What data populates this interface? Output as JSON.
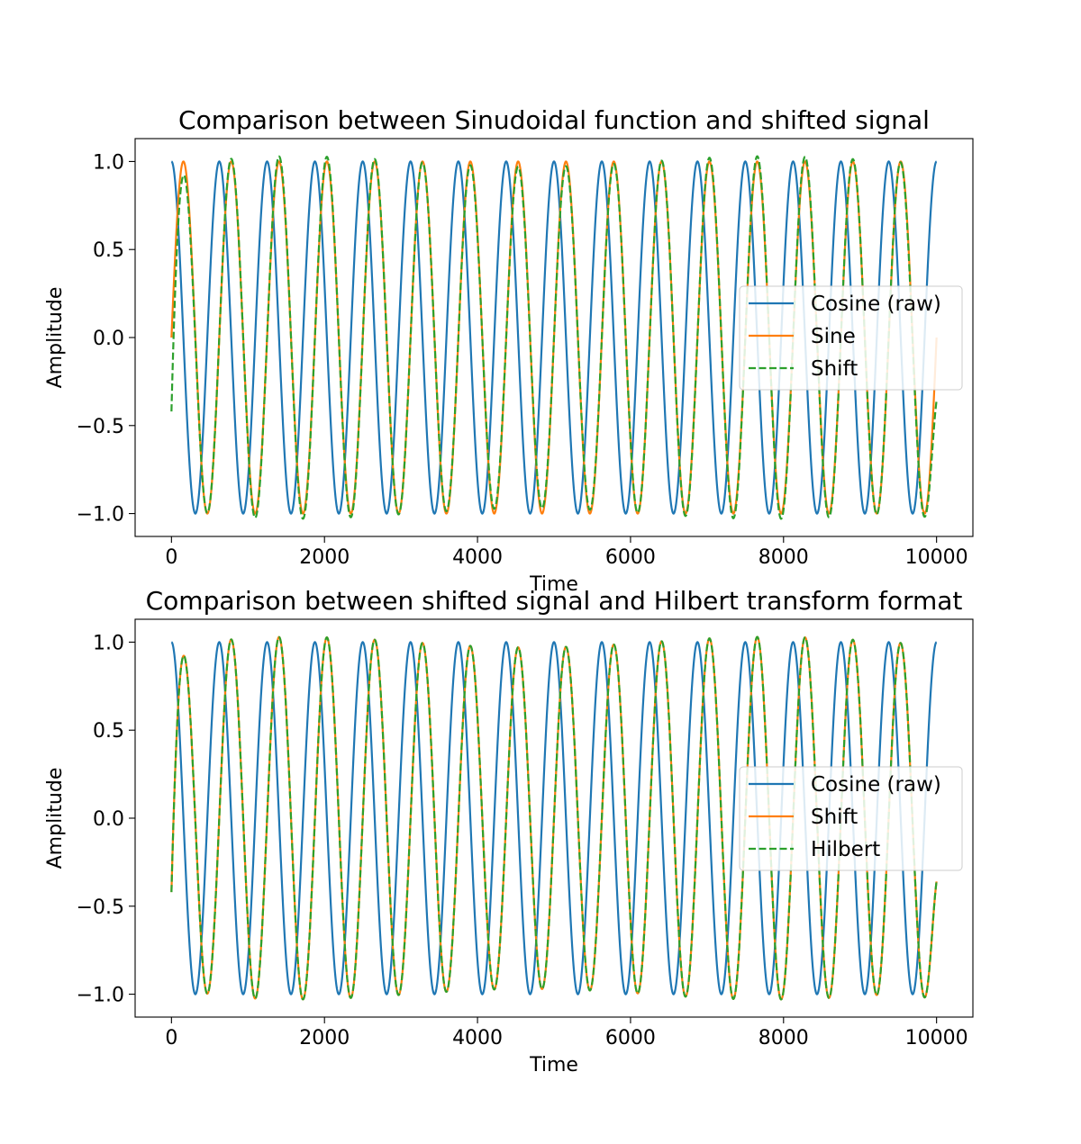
{
  "chart_data": [
    {
      "type": "line",
      "title": "Comparison between Sinudoidal function and shifted signal",
      "xlabel": "Time",
      "ylabel": "Amplitude",
      "xlim": [
        -475,
        10475
      ],
      "ylim": [
        -1.13,
        1.13
      ],
      "xticks": [
        0,
        2000,
        4000,
        6000,
        8000,
        10000
      ],
      "xtick_labels": [
        "0",
        "2000",
        "4000",
        "6000",
        "8000",
        "10000"
      ],
      "yticks": [
        -1.0,
        -0.5,
        0.0,
        0.5,
        1.0
      ],
      "ytick_labels": [
        "−1.0",
        "−0.5",
        "0.0",
        "0.5",
        "1.0"
      ],
      "grid": false,
      "legend_position": "center-right",
      "series": [
        {
          "name": "Cosine (raw)",
          "color": "#1f77b4",
          "style": "solid",
          "function": "cos",
          "period": 625,
          "x_range": [
            0,
            10000
          ]
        },
        {
          "name": "Sine",
          "color": "#ff7f0e",
          "style": "solid",
          "function": "sin",
          "period": 625,
          "x_range": [
            0,
            10000
          ]
        },
        {
          "name": "Shift",
          "color": "#2ca02c",
          "style": "dashed",
          "function": "sin-hilbert-approx",
          "period": 625,
          "x_range": [
            0,
            10000
          ],
          "start_value": -0.48,
          "end_value": -0.43
        }
      ]
    },
    {
      "type": "line",
      "title": "Comparison between shifted signal and Hilbert transform format",
      "xlabel": "Time",
      "ylabel": "Amplitude",
      "xlim": [
        -475,
        10475
      ],
      "ylim": [
        -1.13,
        1.13
      ],
      "xticks": [
        0,
        2000,
        4000,
        6000,
        8000,
        10000
      ],
      "xtick_labels": [
        "0",
        "2000",
        "4000",
        "6000",
        "8000",
        "10000"
      ],
      "yticks": [
        -1.0,
        -0.5,
        0.0,
        0.5,
        1.0
      ],
      "ytick_labels": [
        "−1.0",
        "−0.5",
        "0.0",
        "0.5",
        "1.0"
      ],
      "grid": false,
      "legend_position": "center-right",
      "series": [
        {
          "name": "Cosine (raw)",
          "color": "#1f77b4",
          "style": "solid",
          "function": "cos",
          "period": 625,
          "x_range": [
            0,
            10000
          ]
        },
        {
          "name": "Shift",
          "color": "#ff7f0e",
          "style": "solid",
          "function": "sin-hilbert-approx",
          "period": 625,
          "x_range": [
            0,
            10000
          ],
          "start_value": -0.48,
          "end_value": -0.43
        },
        {
          "name": "Hilbert",
          "color": "#2ca02c",
          "style": "dashed",
          "function": "sin-hilbert-approx",
          "period": 625,
          "x_range": [
            0,
            10000
          ],
          "start_value": -0.48,
          "end_value": -0.43
        }
      ]
    }
  ]
}
